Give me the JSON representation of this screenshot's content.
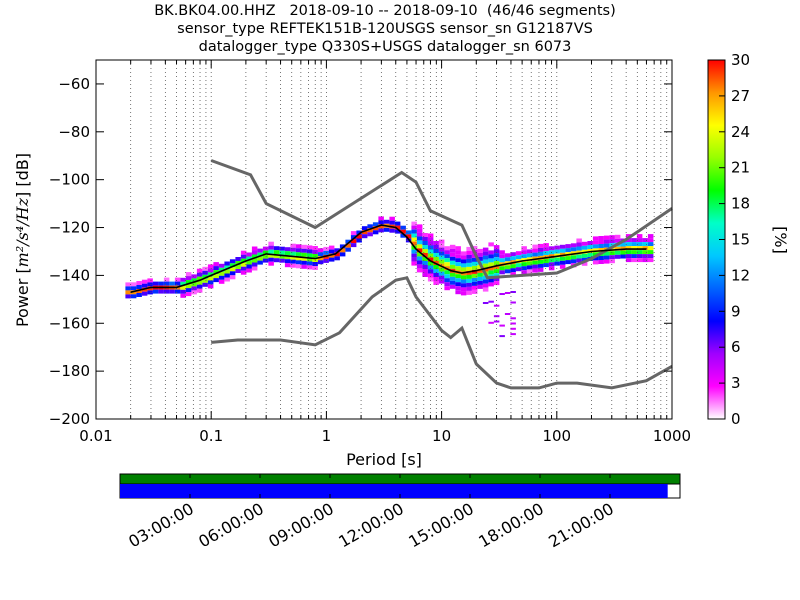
{
  "title_lines": [
    "BK.BK04.00.HHZ   2018-09-10 -- 2018-09-10  (46/46 segments)",
    "sensor_type REFTEK151B-120USGS sensor_sn G12187VS",
    "datalogger_type Q330S+USGS datalogger_sn 6073"
  ],
  "chart_data": {
    "type": "heatmap",
    "xlabel": "Period [s]",
    "ylabel_prefix": "Power [",
    "ylabel_units": "m²/s⁴/Hz",
    "ylabel_suffix": "] [dB]",
    "x_scale": "log",
    "xlim": [
      0.01,
      1000
    ],
    "ylim": [
      -200,
      -50
    ],
    "x_ticks": [
      0.01,
      0.1,
      1,
      10,
      100,
      1000
    ],
    "x_tick_labels": [
      "0.01",
      "0.1",
      "1",
      "10",
      "100",
      "1000"
    ],
    "y_ticks": [
      -200,
      -180,
      -160,
      -140,
      -120,
      -100,
      -80,
      -60
    ],
    "y_tick_labels": [
      "−200",
      "−180",
      "−160",
      "−140",
      "−120",
      "−100",
      "−80",
      "−60"
    ],
    "grid": "dotted vertical at log ticks",
    "colorbar": {
      "label": "[%]",
      "range": [
        0,
        30
      ],
      "ticks": [
        0,
        3,
        6,
        9,
        12,
        15,
        18,
        21,
        24,
        27,
        30
      ],
      "tick_labels": [
        "0",
        "3",
        "6",
        "9",
        "12",
        "15",
        "18",
        "21",
        "24",
        "27",
        "30"
      ],
      "colormap": [
        "#ffffff",
        "#ff00ff",
        "#a000ff",
        "#0000ff",
        "#0064ff",
        "#00c8ff",
        "#00ffc8",
        "#00ff00",
        "#96ff00",
        "#ffff00",
        "#ff9600",
        "#ff0000"
      ]
    },
    "series": [
      {
        "line_color": "#666666",
        "points": [
          [
            0.1,
            -92
          ],
          [
            0.22,
            -98
          ],
          [
            0.3,
            -110
          ],
          [
            0.8,
            -120
          ],
          [
            4.5,
            -97
          ],
          [
            6,
            -101
          ],
          [
            8,
            -113
          ],
          [
            15,
            -119
          ],
          [
            20,
            -132
          ],
          [
            25,
            -141
          ],
          [
            50,
            -140
          ],
          [
            100,
            -139
          ],
          [
            200,
            -133
          ],
          [
            400,
            -125
          ],
          [
            1000,
            -112
          ]
        ]
      },
      {
        "line_color": "#666666",
        "points": [
          [
            0.1,
            -168
          ],
          [
            0.17,
            -167
          ],
          [
            0.4,
            -167
          ],
          [
            0.8,
            -169
          ],
          [
            1.3,
            -164
          ],
          [
            2.5,
            -149
          ],
          [
            4,
            -142
          ],
          [
            5,
            -141
          ],
          [
            6,
            -149
          ],
          [
            10,
            -163
          ],
          [
            12,
            -166
          ],
          [
            15,
            -162
          ],
          [
            20,
            -177
          ],
          [
            30,
            -185
          ],
          [
            40,
            -187
          ],
          [
            70,
            -187
          ],
          [
            100,
            -185
          ],
          [
            150,
            -185
          ],
          [
            300,
            -187
          ],
          [
            600,
            -184
          ],
          [
            1000,
            -178
          ]
        ]
      },
      {
        "line_color": "#000000",
        "points": [
          [
            0.02,
            -147
          ],
          [
            0.03,
            -145
          ],
          [
            0.05,
            -145
          ],
          [
            0.08,
            -142
          ],
          [
            0.1,
            -140
          ],
          [
            0.2,
            -134
          ],
          [
            0.3,
            -131
          ],
          [
            0.5,
            -132
          ],
          [
            0.8,
            -133
          ],
          [
            1.2,
            -131
          ],
          [
            2,
            -122
          ],
          [
            3,
            -119
          ],
          [
            4,
            -120
          ],
          [
            5,
            -124
          ],
          [
            6,
            -129
          ],
          [
            8,
            -134
          ],
          [
            12,
            -138
          ],
          [
            15,
            -139
          ],
          [
            20,
            -138
          ],
          [
            30,
            -136
          ],
          [
            50,
            -134
          ],
          [
            100,
            -132
          ],
          [
            200,
            -130
          ],
          [
            400,
            -129
          ],
          [
            600,
            -129
          ]
        ]
      }
    ],
    "heatmap_note": "cells: color = percentage of PSDs"
  },
  "data_availability": {
    "time_ticks": [
      "03:00:00",
      "06:00:00",
      "09:00:00",
      "12:00:00",
      "15:00:00",
      "18:00:00",
      "21:00:00"
    ],
    "coverage_start": 0.0,
    "coverage_end": 0.978,
    "top_color": "#008000",
    "coverage_color": "#0000ff"
  }
}
